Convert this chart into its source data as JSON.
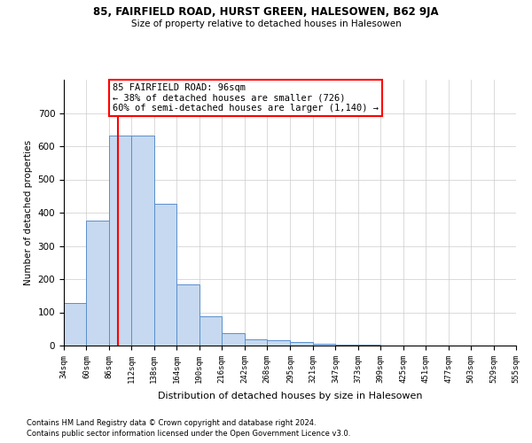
{
  "title1": "85, FAIRFIELD ROAD, HURST GREEN, HALESOWEN, B62 9JA",
  "title2": "Size of property relative to detached houses in Halesowen",
  "xlabel": "Distribution of detached houses by size in Halesowen",
  "ylabel": "Number of detached properties",
  "bin_labels": [
    "34sqm",
    "60sqm",
    "86sqm",
    "112sqm",
    "138sqm",
    "164sqm",
    "190sqm",
    "216sqm",
    "242sqm",
    "268sqm",
    "295sqm",
    "321sqm",
    "347sqm",
    "373sqm",
    "399sqm",
    "425sqm",
    "451sqm",
    "477sqm",
    "503sqm",
    "529sqm",
    "555sqm"
  ],
  "bar_values": [
    127,
    375,
    632,
    632,
    428,
    185,
    88,
    37,
    20,
    15,
    10,
    5,
    3,
    2,
    1,
    1,
    0,
    0,
    0,
    0
  ],
  "bar_color": "#c6d9f0",
  "bar_edge_color": "#5a8fcc",
  "red_line_x": 96,
  "annotation_line1": "85 FAIRFIELD ROAD: 96sqm",
  "annotation_line2": "← 38% of detached houses are smaller (726)",
  "annotation_line3": "60% of semi-detached houses are larger (1,140) →",
  "annotation_box_color": "white",
  "annotation_box_edge_color": "red",
  "vline_color": "red",
  "ylim": [
    0,
    800
  ],
  "yticks": [
    0,
    100,
    200,
    300,
    400,
    500,
    600,
    700,
    800
  ],
  "footer1": "Contains HM Land Registry data © Crown copyright and database right 2024.",
  "footer2": "Contains public sector information licensed under the Open Government Licence v3.0.",
  "bin_edges": [
    34,
    60,
    86,
    112,
    138,
    164,
    190,
    216,
    242,
    268,
    295,
    321,
    347,
    373,
    399,
    425,
    451,
    477,
    503,
    529,
    555
  ]
}
